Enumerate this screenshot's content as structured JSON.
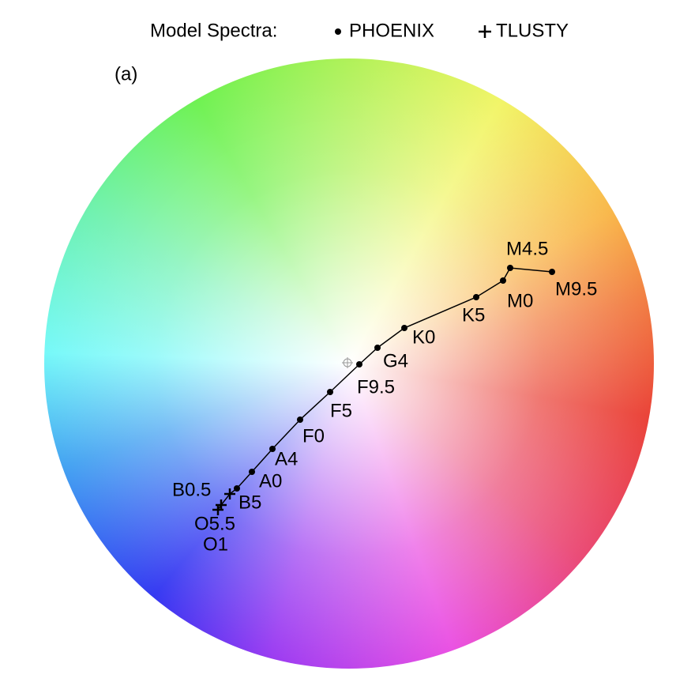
{
  "legend_title": "Model Spectra:",
  "panel_label": "(a)",
  "series": [
    {
      "name": "PHOENIX",
      "labels": [
        "M9.5",
        "M4.5",
        "M0",
        "K5",
        "K0",
        "G4",
        "F9.5",
        "F5",
        "F0",
        "A4",
        "A0",
        "B5"
      ]
    },
    {
      "name": "TLUSTY",
      "labels": [
        "B0.5",
        "O5.5",
        "O1"
      ]
    }
  ]
}
